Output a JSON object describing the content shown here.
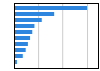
{
  "chart_data": {
    "type": "bar",
    "orientation": "horizontal",
    "categories": [
      null,
      null,
      null,
      null,
      null,
      null,
      null,
      null,
      null,
      null
    ],
    "values": [
      100,
      55,
      38,
      28,
      25,
      22,
      19,
      16,
      12,
      4
    ],
    "color": "#2e86de",
    "xlim": [
      0,
      115
    ],
    "xticks": [
      33,
      66,
      100
    ],
    "grid": true,
    "tick_labels": false
  }
}
